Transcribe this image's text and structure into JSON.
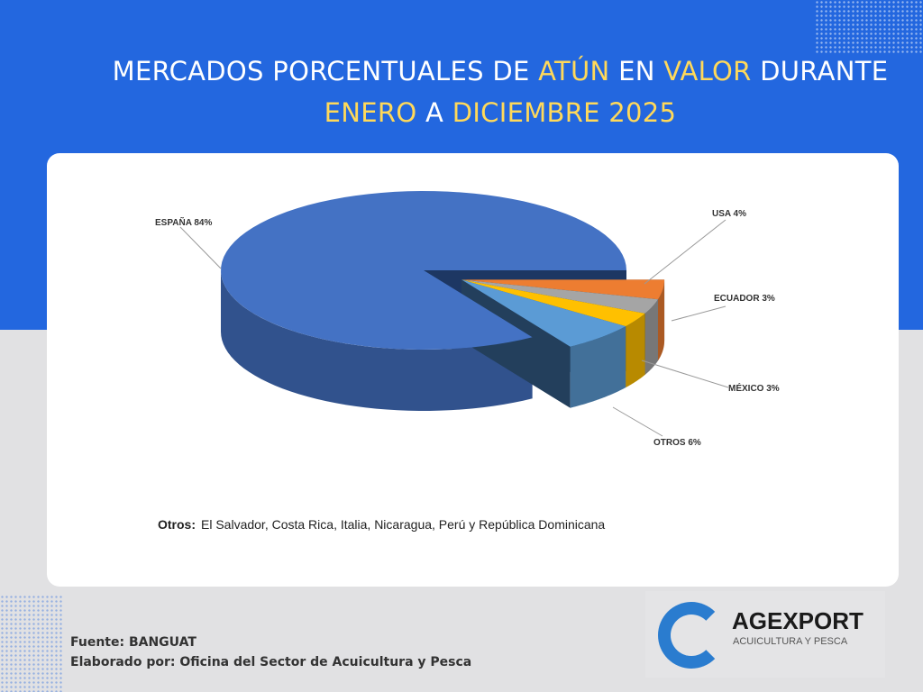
{
  "title": {
    "part1": "MERCADOS PORCENTUALES DE ",
    "hl1": "ATÚN",
    "part2": " EN ",
    "hl2": "VALOR",
    "part3": " DURANTE",
    "hl3": "ENERO",
    "part4": " A ",
    "hl4": "DICIEMBRE 2025"
  },
  "chart_data": {
    "type": "pie",
    "title": "MERCADOS PORCENTUALES DE ATÚN EN VALOR DURANTE ENERO A DICIEMBRE 2025",
    "categories": [
      "ESPAÑA",
      "USA",
      "ECUADOR",
      "MÉXICO",
      "OTROS"
    ],
    "values": [
      84,
      4,
      3,
      3,
      6
    ],
    "labels": [
      "ESPAÑA 84%",
      "USA 4%",
      "ECUADOR 3%",
      "MÉXICO 3%",
      "OTROS 6%"
    ],
    "colors": [
      "#4472C4",
      "#ED7D31",
      "#A5A5A5",
      "#FFC000",
      "#5B9BD5"
    ],
    "style": "3d-exploded"
  },
  "note": {
    "label": "Otros:",
    "text": "El Salvador, Costa Rica, Italia, Nicaragua, Perú y República Dominicana"
  },
  "footer": {
    "source": "Fuente: BANGUAT",
    "author": "Elaborado por: Oficina del Sector de Acuicultura y Pesca"
  },
  "logo": {
    "name": "AGEXPORT",
    "sub": "ACUICULTURA Y PESCA"
  }
}
